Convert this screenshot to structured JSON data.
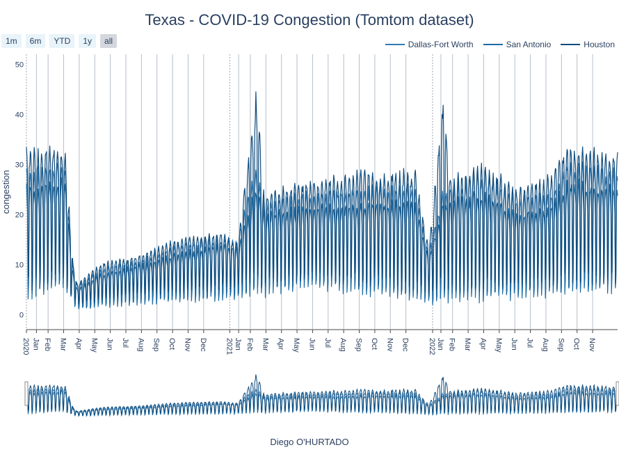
{
  "title": "Texas - COVID-19 Congestion (Tomtom dataset)",
  "range_buttons": [
    "1m",
    "6m",
    "YTD",
    "1y",
    "all"
  ],
  "active_range": "all",
  "credit": "Diego O'HURTADO",
  "chart_data": {
    "type": "line",
    "title": "Texas - COVID-19 Congestion (Tomtom dataset)",
    "xlabel": "",
    "ylabel": "congestion",
    "xlim": [
      "2020-01-01",
      "2022-11-30"
    ],
    "ylim": [
      -3,
      52
    ],
    "grid": true,
    "legend_position": "top-right",
    "y_ticks": [
      0,
      10,
      20,
      30,
      40,
      50
    ],
    "x_ticks": [
      {
        "date": "2020-01-01",
        "label": "2020"
      },
      {
        "date": "2020-01-19",
        "label": "Jan"
      },
      {
        "date": "2020-02-09",
        "label": "Feb"
      },
      {
        "date": "2020-03-08",
        "label": "Mar"
      },
      {
        "date": "2020-04-05",
        "label": "Apr"
      },
      {
        "date": "2020-05-03",
        "label": "May"
      },
      {
        "date": "2020-05-31",
        "label": "Jun"
      },
      {
        "date": "2020-06-28",
        "label": "Jul"
      },
      {
        "date": "2020-07-26",
        "label": "Aug"
      },
      {
        "date": "2020-08-23",
        "label": "Sep"
      },
      {
        "date": "2020-09-20",
        "label": "Oct"
      },
      {
        "date": "2020-10-18",
        "label": "Nov"
      },
      {
        "date": "2020-11-15",
        "label": "Dec"
      },
      {
        "date": "2021-01-01",
        "label": "2021"
      },
      {
        "date": "2021-01-17",
        "label": "Jan"
      },
      {
        "date": "2021-02-07",
        "label": "Feb"
      },
      {
        "date": "2021-03-07",
        "label": "Mar"
      },
      {
        "date": "2021-04-04",
        "label": "Apr"
      },
      {
        "date": "2021-05-02",
        "label": "May"
      },
      {
        "date": "2021-05-30",
        "label": "Jun"
      },
      {
        "date": "2021-06-27",
        "label": "Jul"
      },
      {
        "date": "2021-07-25",
        "label": "Aug"
      },
      {
        "date": "2021-08-22",
        "label": "Sep"
      },
      {
        "date": "2021-09-19",
        "label": "Oct"
      },
      {
        "date": "2021-10-17",
        "label": "Nov"
      },
      {
        "date": "2021-11-14",
        "label": "Dec"
      },
      {
        "date": "2022-01-01",
        "label": "2022"
      },
      {
        "date": "2022-01-16",
        "label": "Jan"
      },
      {
        "date": "2022-02-06",
        "label": "Feb"
      },
      {
        "date": "2022-03-06",
        "label": "Mar"
      },
      {
        "date": "2022-04-03",
        "label": "Apr"
      },
      {
        "date": "2022-05-01",
        "label": "May"
      },
      {
        "date": "2022-05-29",
        "label": "Jun"
      },
      {
        "date": "2022-06-26",
        "label": "Jul"
      },
      {
        "date": "2022-07-24",
        "label": "Aug"
      },
      {
        "date": "2022-08-21",
        "label": "Sep"
      },
      {
        "date": "2022-09-18",
        "label": "Oct"
      },
      {
        "date": "2022-10-16",
        "label": "Nov"
      }
    ],
    "series": [
      {
        "name": "Dallas-Fort Worth",
        "color": "#2c79b5",
        "values_note_excluded": false,
        "weekday_high": [
          [
            "2020-01-01",
            28
          ],
          [
            "2020-03-10",
            30
          ],
          [
            "2020-03-25",
            9
          ],
          [
            "2020-04-01",
            6
          ],
          [
            "2020-05-15",
            9
          ],
          [
            "2020-08-01",
            11
          ],
          [
            "2020-10-01",
            14
          ],
          [
            "2020-12-15",
            15
          ],
          [
            "2021-01-15",
            15
          ],
          [
            "2021-02-20",
            30
          ],
          [
            "2021-03-01",
            22
          ],
          [
            "2021-06-01",
            24
          ],
          [
            "2021-09-01",
            25
          ],
          [
            "2021-12-01",
            25
          ],
          [
            "2021-12-25",
            12
          ],
          [
            "2022-01-20",
            24
          ],
          [
            "2022-04-01",
            28
          ],
          [
            "2022-06-01",
            23
          ],
          [
            "2022-08-01",
            24
          ],
          [
            "2022-09-01",
            30
          ],
          [
            "2022-11-30",
            28
          ]
        ],
        "weekend_low": [
          [
            "2020-01-01",
            4
          ],
          [
            "2020-03-10",
            5
          ],
          [
            "2020-04-01",
            1
          ],
          [
            "2020-08-01",
            3
          ],
          [
            "2021-02-01",
            4
          ],
          [
            "2021-06-01",
            6
          ],
          [
            "2022-01-01",
            3
          ],
          [
            "2022-11-30",
            5
          ]
        ]
      },
      {
        "name": "San Antonio",
        "color": "#1b6aa3",
        "weekday_high": [
          [
            "2020-01-01",
            25
          ],
          [
            "2020-03-10",
            27
          ],
          [
            "2020-03-25",
            8
          ],
          [
            "2020-04-01",
            5
          ],
          [
            "2020-05-15",
            8
          ],
          [
            "2020-08-01",
            10
          ],
          [
            "2020-10-01",
            12
          ],
          [
            "2020-12-15",
            14
          ],
          [
            "2021-01-15",
            13
          ],
          [
            "2021-02-20",
            26
          ],
          [
            "2021-03-01",
            20
          ],
          [
            "2021-06-01",
            21
          ],
          [
            "2021-09-01",
            22
          ],
          [
            "2021-12-01",
            22
          ],
          [
            "2021-12-25",
            11
          ],
          [
            "2022-01-20",
            22
          ],
          [
            "2022-04-01",
            24
          ],
          [
            "2022-06-01",
            20
          ],
          [
            "2022-08-01",
            21
          ],
          [
            "2022-09-01",
            26
          ],
          [
            "2022-11-30",
            25
          ]
        ],
        "weekend_low": [
          [
            "2020-01-01",
            3
          ],
          [
            "2020-03-10",
            4
          ],
          [
            "2020-04-01",
            1
          ],
          [
            "2020-08-01",
            2
          ],
          [
            "2021-02-01",
            3
          ],
          [
            "2021-06-01",
            5
          ],
          [
            "2022-01-01",
            2
          ],
          [
            "2022-11-30",
            4
          ]
        ]
      },
      {
        "name": "Houston",
        "color": "#0f4c7d",
        "weekday_high": [
          [
            "2020-01-01",
            32
          ],
          [
            "2020-03-10",
            33
          ],
          [
            "2020-03-25",
            10
          ],
          [
            "2020-04-01",
            6
          ],
          [
            "2020-05-15",
            10
          ],
          [
            "2020-08-01",
            12
          ],
          [
            "2020-10-01",
            15
          ],
          [
            "2020-12-15",
            16
          ],
          [
            "2021-01-15",
            14
          ],
          [
            "2021-02-20",
            46
          ],
          [
            "2021-03-01",
            24
          ],
          [
            "2021-06-01",
            26
          ],
          [
            "2021-09-01",
            28
          ],
          [
            "2021-12-01",
            28
          ],
          [
            "2021-12-25",
            13
          ],
          [
            "2022-01-20",
            42
          ],
          [
            "2022-02-01",
            27
          ],
          [
            "2022-04-01",
            29
          ],
          [
            "2022-06-01",
            25
          ],
          [
            "2022-08-01",
            27
          ],
          [
            "2022-09-01",
            33
          ],
          [
            "2022-11-30",
            31
          ]
        ],
        "weekend_low": [
          [
            "2020-01-01",
            5
          ],
          [
            "2020-03-10",
            6
          ],
          [
            "2020-04-01",
            2
          ],
          [
            "2020-08-01",
            4
          ],
          [
            "2021-02-01",
            5
          ],
          [
            "2021-06-01",
            7
          ],
          [
            "2022-01-01",
            4
          ],
          [
            "2022-11-30",
            6
          ]
        ]
      }
    ]
  }
}
